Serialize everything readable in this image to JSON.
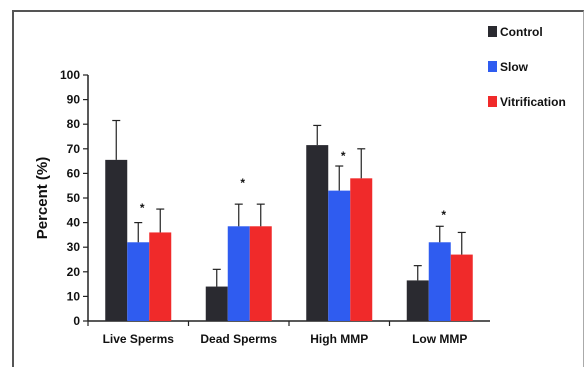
{
  "chart_data": {
    "type": "bar",
    "title": "",
    "xlabel": "",
    "ylabel": "Percent (%)",
    "ylim": [
      0,
      100
    ],
    "yticks": [
      0,
      10,
      20,
      30,
      40,
      50,
      60,
      70,
      80,
      90,
      100
    ],
    "grid": false,
    "legend_position": "top-right",
    "categories": [
      "Live Sperms",
      "Dead Sperms",
      "High MMP",
      "Low MMP"
    ],
    "series": [
      {
        "name": "Control",
        "color": "#2a2a30",
        "values": [
          65.5,
          14,
          71.5,
          16.5
        ],
        "errors": [
          16,
          7,
          8,
          6
        ]
      },
      {
        "name": "Slow",
        "color": "#2f5cf0",
        "values": [
          32,
          38.5,
          53,
          32
        ],
        "errors": [
          8,
          9,
          10,
          6.5
        ]
      },
      {
        "name": "Vitrification",
        "color": "#f02a2a",
        "values": [
          36,
          38.5,
          58,
          27
        ],
        "errors": [
          9.5,
          9,
          12,
          9
        ]
      }
    ],
    "significance_markers": [
      {
        "category": "Live Sperms",
        "symbol": "*",
        "value": 46
      },
      {
        "category": "Dead Sperms",
        "symbol": "*",
        "value": 56
      },
      {
        "category": "High MMP",
        "symbol": "*",
        "value": 67
      },
      {
        "category": "Low MMP",
        "symbol": "*",
        "value": 43
      }
    ]
  }
}
